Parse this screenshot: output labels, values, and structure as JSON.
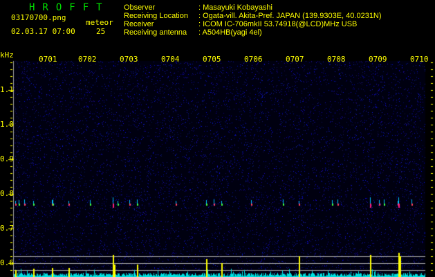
{
  "app_title": "HROFFT",
  "file_name": "03170700.png",
  "datetime": "02.03.17 07:00",
  "meteor_label": "meteor",
  "meteor_count": "25",
  "info": [
    {
      "label": "Observer",
      "value": ": Masayuki Kobayashi"
    },
    {
      "label": "Receiving Location",
      "value": ": Ogata-vill. Akita-Pref. JAPAN (139.9303E, 40.0231N)"
    },
    {
      "label": "Receiver",
      "value": ": ICOM IC-706mkII 53.74918(@LCD)MHz USB"
    },
    {
      "label": "Receiving antenna",
      "value": ": A504HB(yagi 4el)"
    }
  ],
  "y_unit": "kHz",
  "y_ticks": [
    "1.1",
    "1.0",
    "0.9",
    "0.8",
    "0.7",
    "0.6"
  ],
  "x_ticks": [
    "0701",
    "0702",
    "0703",
    "0704",
    "0705",
    "0706",
    "0707",
    "0708",
    "0709",
    "0710"
  ],
  "colors": {
    "text": "#ffff00",
    "title": "#00e000",
    "background": "#000000",
    "noise": "#1a1aa0",
    "level_bars": "#00e0e0",
    "meteor_bars": "#ffff00",
    "guide_lines": "#a0a0a0"
  }
}
